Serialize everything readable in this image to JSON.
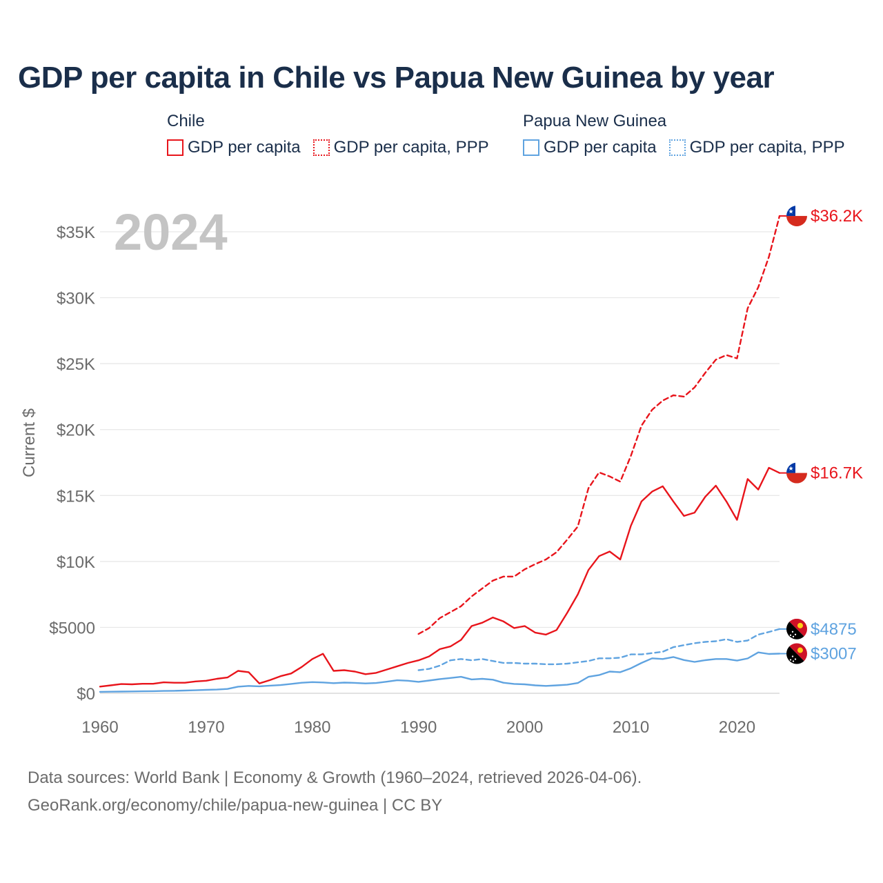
{
  "title": "GDP per capita in Chile vs Papua New Guinea by year",
  "legend": {
    "groups": [
      {
        "name": "Chile",
        "color": "#e8141b",
        "items": [
          "GDP per capita",
          "GDP per capita, PPP"
        ]
      },
      {
        "name": "Papua New Guinea",
        "color": "#5fa3e0",
        "items": [
          "GDP per capita",
          "GDP per capita, PPP"
        ]
      }
    ]
  },
  "chart_data": {
    "type": "line",
    "title": "GDP per capita in Chile vs Papua New Guinea by year",
    "year_label": "2024",
    "xlabel": "",
    "ylabel": "Current $",
    "xlim": [
      1960,
      2024
    ],
    "ylim": [
      0,
      37000
    ],
    "x_ticks": [
      1960,
      1970,
      1980,
      1990,
      2000,
      2010,
      2020
    ],
    "x_tick_labels": [
      "1960",
      "1970",
      "1980",
      "1990",
      "2000",
      "2010",
      "2020"
    ],
    "y_ticks": [
      0,
      5000,
      10000,
      15000,
      20000,
      25000,
      30000,
      35000
    ],
    "y_tick_labels": [
      "$0",
      "$5000",
      "$10K",
      "$15K",
      "$20K",
      "$25K",
      "$30K",
      "$35K"
    ],
    "grid": true,
    "series": [
      {
        "name": "Chile GDP per capita",
        "style": "solid",
        "color": "#e8141b",
        "x": [
          1960,
          1961,
          1962,
          1963,
          1964,
          1965,
          1966,
          1967,
          1968,
          1969,
          1970,
          1971,
          1972,
          1973,
          1974,
          1975,
          1976,
          1977,
          1978,
          1979,
          1980,
          1981,
          1982,
          1983,
          1984,
          1985,
          1986,
          1987,
          1988,
          1989,
          1990,
          1991,
          1992,
          1993,
          1994,
          1995,
          1996,
          1997,
          1998,
          1999,
          2000,
          2001,
          2002,
          2003,
          2004,
          2005,
          2006,
          2007,
          2008,
          2009,
          2010,
          2011,
          2012,
          2013,
          2014,
          2015,
          2016,
          2017,
          2018,
          2019,
          2020,
          2021,
          2022,
          2023,
          2024
        ],
        "values": [
          510,
          600,
          700,
          680,
          720,
          720,
          830,
          800,
          800,
          900,
          950,
          1100,
          1200,
          1700,
          1600,
          750,
          1000,
          1300,
          1500,
          2000,
          2600,
          3000,
          1700,
          1750,
          1650,
          1450,
          1550,
          1800,
          2050,
          2300,
          2500,
          2800,
          3350,
          3550,
          4050,
          5100,
          5350,
          5750,
          5450,
          4950,
          5100,
          4600,
          4450,
          4800,
          6100,
          7500,
          9350,
          10400,
          10750,
          10150,
          12700,
          14550,
          15300,
          15700,
          14550,
          13450,
          13700,
          14900,
          15750,
          14550,
          13150,
          16250,
          15450,
          17100,
          16710
        ],
        "end_label": "$16.7K"
      },
      {
        "name": "Chile GDP per capita, PPP",
        "style": "dashed",
        "color": "#e8141b",
        "x": [
          1990,
          1991,
          1992,
          1993,
          1994,
          1995,
          1996,
          1997,
          1998,
          1999,
          2000,
          2001,
          2002,
          2003,
          2004,
          2005,
          2006,
          2007,
          2008,
          2009,
          2010,
          2011,
          2012,
          2013,
          2014,
          2015,
          2016,
          2017,
          2018,
          2019,
          2020,
          2021,
          2022,
          2023,
          2024
        ],
        "values": [
          4500,
          4950,
          5700,
          6150,
          6600,
          7350,
          7950,
          8550,
          8850,
          8850,
          9400,
          9800,
          10150,
          10700,
          11650,
          12650,
          15550,
          16750,
          16450,
          16050,
          18000,
          20300,
          21500,
          22200,
          22600,
          22500,
          23200,
          24300,
          25300,
          25650,
          25400,
          29200,
          30800,
          33100,
          36200
        ],
        "end_label": "$36.2K"
      },
      {
        "name": "Papua New Guinea GDP per capita",
        "style": "solid",
        "color": "#5fa3e0",
        "x": [
          1960,
          1961,
          1962,
          1963,
          1964,
          1965,
          1966,
          1967,
          1968,
          1969,
          1970,
          1971,
          1972,
          1973,
          1974,
          1975,
          1976,
          1977,
          1978,
          1979,
          1980,
          1981,
          1982,
          1983,
          1984,
          1985,
          1986,
          1987,
          1988,
          1989,
          1990,
          1991,
          1992,
          1993,
          1994,
          1995,
          1996,
          1997,
          1998,
          1999,
          2000,
          2001,
          2002,
          2003,
          2004,
          2005,
          2006,
          2007,
          2008,
          2009,
          2010,
          2011,
          2012,
          2013,
          2014,
          2015,
          2016,
          2017,
          2018,
          2019,
          2020,
          2021,
          2022,
          2023,
          2024
        ],
        "values": [
          110,
          120,
          130,
          140,
          150,
          160,
          180,
          190,
          210,
          230,
          260,
          280,
          330,
          500,
          560,
          530,
          580,
          620,
          710,
          800,
          850,
          820,
          770,
          810,
          790,
          750,
          780,
          880,
          990,
          950,
          870,
          970,
          1080,
          1160,
          1250,
          1050,
          1100,
          1030,
          800,
          710,
          680,
          600,
          560,
          600,
          650,
          780,
          1250,
          1380,
          1650,
          1600,
          1900,
          2300,
          2650,
          2600,
          2750,
          2520,
          2380,
          2510,
          2600,
          2600,
          2480,
          2640,
          3100,
          2980,
          3007
        ],
        "end_label": "$3007"
      },
      {
        "name": "Papua New Guinea GDP per capita, PPP",
        "style": "dashed",
        "color": "#5fa3e0",
        "x": [
          1990,
          1991,
          1992,
          1993,
          1994,
          1995,
          1996,
          1997,
          1998,
          1999,
          2000,
          2001,
          2002,
          2003,
          2004,
          2005,
          2006,
          2007,
          2008,
          2009,
          2010,
          2011,
          2012,
          2013,
          2014,
          2015,
          2016,
          2017,
          2018,
          2019,
          2020,
          2021,
          2022,
          2023,
          2024
        ],
        "values": [
          1750,
          1850,
          2100,
          2500,
          2600,
          2500,
          2600,
          2450,
          2300,
          2300,
          2250,
          2250,
          2200,
          2200,
          2250,
          2350,
          2450,
          2650,
          2650,
          2700,
          2950,
          2950,
          3050,
          3150,
          3500,
          3650,
          3800,
          3900,
          3950,
          4100,
          3900,
          4000,
          4450,
          4650,
          4875
        ],
        "end_label": "$4875"
      }
    ]
  },
  "footer": {
    "line1": "Data sources: World Bank | Economy & Growth (1960–2024, retrieved 2026-04-06).",
    "line2": "GeoRank.org/economy/chile/papua-new-guinea | CC BY"
  }
}
